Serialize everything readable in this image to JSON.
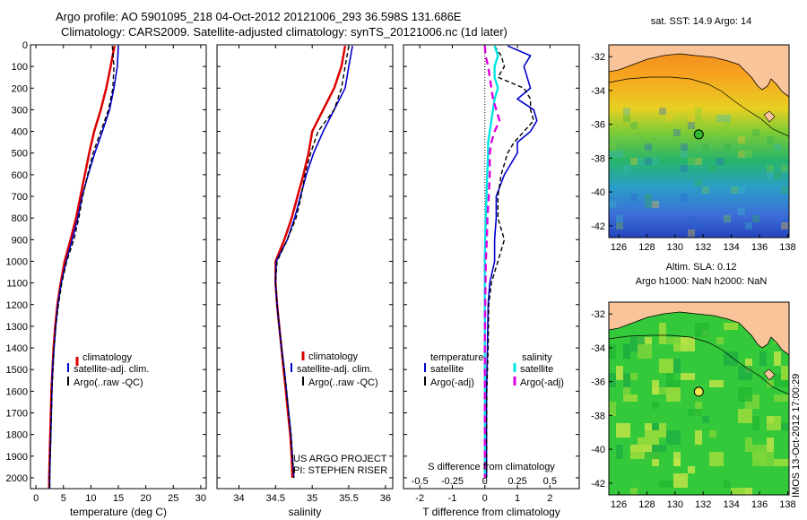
{
  "header": {
    "line1": "Argo profile: AO 5901095_218 04-Oct-2012 20121006_293 36.598S 131.686E",
    "line2": "Climatology: CARS2009. Satellite-adjusted climatology: synTS_20121006.nc (1d later)"
  },
  "panels": {
    "temperature": {
      "xlabel": "temperature (deg C)"
    },
    "salinity": {
      "xlabel": "salinity"
    },
    "difference": {
      "xlabel_top": "S difference from climatology",
      "xlabel_bottom": "T difference from climatology",
      "legend_temp_title": "temperature",
      "legend_sal_title": "salinity"
    },
    "sst_map": {
      "title": "sat. SST: 14.9 Argo: 14"
    },
    "sla_map": {
      "title1": "Altim. SLA: 0.12",
      "title2": "Argo h1000: NaN h2000: NaN"
    }
  },
  "legend": {
    "climatology": "climatology",
    "satellite_adj": "satellite-adj. clim.",
    "argo_raw": "Argo(..raw -QC)",
    "satellite": "satellite",
    "argo_adj": "Argo(-adj)"
  },
  "credits": {
    "project": "US ARGO PROJECT",
    "pi": "PI: STEPHEN RISER",
    "stamp": "IMOS 13-Oct-2012 17:00:29"
  },
  "colors": {
    "climatology": "#dd0000",
    "satellite": "#0000cc",
    "argo": "#000000",
    "sat_salinity": "#00e5e5",
    "argo_salinity": "#dd00dd",
    "land": "#f9c49a"
  },
  "chart_data": [
    {
      "type": "line",
      "name": "temperature",
      "xlabel": "temperature (deg C)",
      "ylabel": "",
      "xlim": [
        -1,
        31
      ],
      "ylim": [
        2050,
        0
      ],
      "xticks": [
        0,
        5,
        10,
        15,
        20,
        25,
        30
      ],
      "yticks": [
        0,
        100,
        200,
        300,
        400,
        500,
        600,
        700,
        800,
        900,
        1000,
        1100,
        1200,
        1300,
        1400,
        1500,
        1600,
        1700,
        1800,
        1900,
        2000
      ],
      "depth": [
        5,
        100,
        200,
        300,
        400,
        500,
        600,
        700,
        800,
        900,
        1000,
        1100,
        1200,
        1300,
        1400,
        1500,
        1600,
        1700,
        1800,
        1900,
        2000,
        2050
      ],
      "series": [
        {
          "key": "climatology",
          "values": [
            14.3,
            13.6,
            12.8,
            11.8,
            10.6,
            9.7,
            8.9,
            8.1,
            7.3,
            6.3,
            5.2,
            4.5,
            3.9,
            3.5,
            3.2,
            3.0,
            2.8,
            2.7,
            2.6,
            2.5,
            2.4,
            2.4
          ]
        },
        {
          "key": "satellite",
          "values": [
            15.0,
            14.8,
            14.2,
            13.4,
            12.1,
            10.7,
            9.5,
            8.4,
            7.6,
            6.6,
            5.5,
            4.6,
            4.0,
            3.6,
            3.3,
            3.0,
            2.9,
            2.8,
            2.7,
            2.6,
            2.5,
            2.5
          ]
        },
        {
          "key": "argo",
          "values": [
            13.9,
            14.2,
            14.0,
            13.2,
            11.8,
            10.4,
            9.4,
            8.5,
            7.8,
            6.9,
            5.6,
            4.7,
            4.1,
            3.6,
            3.3,
            3.1,
            2.9,
            2.8,
            2.7,
            2.6,
            2.5,
            2.5
          ]
        }
      ]
    },
    {
      "type": "line",
      "name": "salinity",
      "xlabel": "salinity",
      "xlim": [
        33.7,
        36.1
      ],
      "ylim": [
        2050,
        0
      ],
      "xticks": [
        34,
        34.5,
        35,
        35.5,
        36
      ],
      "depth": [
        5,
        100,
        200,
        300,
        400,
        500,
        600,
        700,
        800,
        900,
        1000,
        1100,
        1200,
        1300,
        1400,
        1500,
        1600,
        1700,
        1800,
        1900,
        2000
      ],
      "series": [
        {
          "key": "climatology",
          "values": [
            35.45,
            35.4,
            35.3,
            35.15,
            35.0,
            34.95,
            34.88,
            34.8,
            34.72,
            34.62,
            34.5,
            34.5,
            34.52,
            34.55,
            34.58,
            34.61,
            34.64,
            34.67,
            34.7,
            34.72,
            34.73
          ]
        },
        {
          "key": "satellite",
          "values": [
            35.55,
            35.5,
            35.45,
            35.3,
            35.15,
            35.02,
            34.92,
            34.84,
            34.76,
            34.66,
            34.51,
            34.5,
            34.52,
            34.55,
            34.58,
            34.62,
            34.65,
            34.68,
            34.71,
            34.73,
            34.75
          ]
        },
        {
          "key": "argo",
          "values": [
            35.5,
            35.45,
            35.4,
            35.3,
            35.08,
            34.98,
            34.9,
            34.85,
            34.78,
            34.66,
            34.52,
            34.5,
            34.52,
            34.55,
            34.58,
            34.62,
            34.65,
            34.68,
            34.71,
            34.73,
            34.75
          ]
        }
      ]
    },
    {
      "type": "line",
      "name": "difference",
      "xlabel_top": "S difference from climatology",
      "xlabel_bottom": "T difference from climatology",
      "xlim": [
        -2.5,
        2.9
      ],
      "ylim": [
        2050,
        0
      ],
      "xticks_bottom": [
        -2,
        -1,
        0,
        1,
        2
      ],
      "xticks_top": [
        -0.5,
        -0.25,
        0,
        0.25,
        0.5
      ],
      "depth": [
        5,
        50,
        100,
        150,
        200,
        250,
        300,
        350,
        400,
        450,
        500,
        600,
        700,
        800,
        900,
        1000,
        1100,
        1200,
        1400,
        1600,
        1800,
        2000
      ],
      "series": [
        {
          "key": "satellite_temperature",
          "values": [
            0.7,
            1.4,
            1.2,
            1.3,
            1.4,
            1.0,
            1.5,
            1.6,
            1.4,
            1.0,
            1.0,
            0.6,
            0.35,
            0.35,
            0.3,
            0.3,
            0.15,
            0.1,
            0.08,
            0.05,
            0.05,
            0.05
          ]
        },
        {
          "key": "argo_temperature",
          "values": [
            0.3,
            0.5,
            0.6,
            0.4,
            1.2,
            1.4,
            1.4,
            1.5,
            1.2,
            0.9,
            0.7,
            0.5,
            0.4,
            0.4,
            0.6,
            0.4,
            0.2,
            0.12,
            0.1,
            0.06,
            0.05,
            0.05
          ]
        },
        {
          "key": "satellite_salinity",
          "values": [
            0.3,
            0.4,
            0.3,
            0.3,
            0.4,
            0.3,
            0.25,
            0.2,
            0.15,
            0.1,
            0.1,
            0.07,
            0.05,
            0.03,
            0.01,
            0.0,
            0.0,
            0.0,
            0.0,
            0.0,
            0.0,
            0.0
          ]
        },
        {
          "key": "argo_salinity",
          "values": [
            0.0,
            0.02,
            0.1,
            0.15,
            0.2,
            0.25,
            0.35,
            0.45,
            0.3,
            0.2,
            0.15,
            0.15,
            0.12,
            0.08,
            0.06,
            0.03,
            0.02,
            0.01,
            0.0,
            0.0,
            0.0,
            0.0
          ]
        }
      ]
    },
    {
      "type": "heatmap",
      "name": "sst_map",
      "title": "sat. SST: 14.9 Argo: 14",
      "xlim": [
        125.3,
        138.1
      ],
      "ylim": [
        -42.7,
        -31.3
      ],
      "xticks": [
        126,
        128,
        130,
        132,
        134,
        136,
        138
      ],
      "yticks": [
        -32,
        -34,
        -36,
        -38,
        -40,
        -42
      ],
      "argo_position": {
        "lon": 131.686,
        "lat": -36.598
      }
    },
    {
      "type": "heatmap",
      "name": "sla_map",
      "title": "Altim. SLA: 0.12",
      "xlim": [
        125.3,
        138.1
      ],
      "ylim": [
        -42.7,
        -31.3
      ],
      "xticks": [
        126,
        128,
        130,
        132,
        134,
        136,
        138
      ],
      "yticks": [
        -32,
        -34,
        -36,
        -38,
        -40,
        -42
      ],
      "argo_position": {
        "lon": 131.686,
        "lat": -36.598
      }
    }
  ]
}
